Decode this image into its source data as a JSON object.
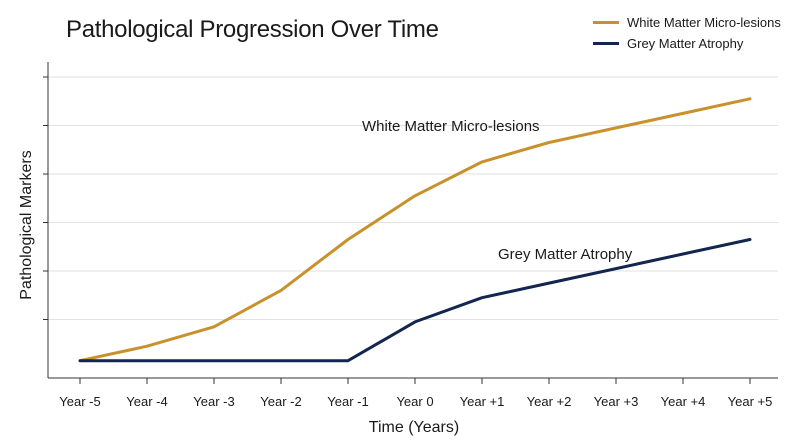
{
  "chart_data": {
    "type": "line",
    "title": "Pathological Progression Over Time",
    "xlabel": "Time (Years)",
    "ylabel": "Pathological Markers",
    "categories": [
      "Year -5",
      "Year -4",
      "Year -3",
      "Year -2",
      "Year -1",
      "Year 0",
      "Year +1",
      "Year +2",
      "Year +3",
      "Year +4",
      "Year +5"
    ],
    "ylim": [
      0,
      6
    ],
    "grid": true,
    "y_tick_labels_shown": false,
    "legend_position": "top-right",
    "series": [
      {
        "name": "White Matter Micro-lesions",
        "color": "#C8912C",
        "values": [
          0.15,
          0.45,
          0.85,
          1.6,
          2.65,
          3.55,
          4.25,
          4.65,
          4.95,
          5.25,
          5.55
        ]
      },
      {
        "name": "Grey Matter Atrophy",
        "color": "#13264F",
        "values": [
          0.15,
          0.15,
          0.15,
          0.15,
          0.15,
          0.95,
          1.45,
          1.75,
          2.05,
          2.35,
          2.65
        ]
      }
    ],
    "annotations": [
      {
        "text": "White Matter Micro-lesions",
        "series": 0
      },
      {
        "text": "Grey Matter Atrophy",
        "series": 1
      }
    ]
  }
}
